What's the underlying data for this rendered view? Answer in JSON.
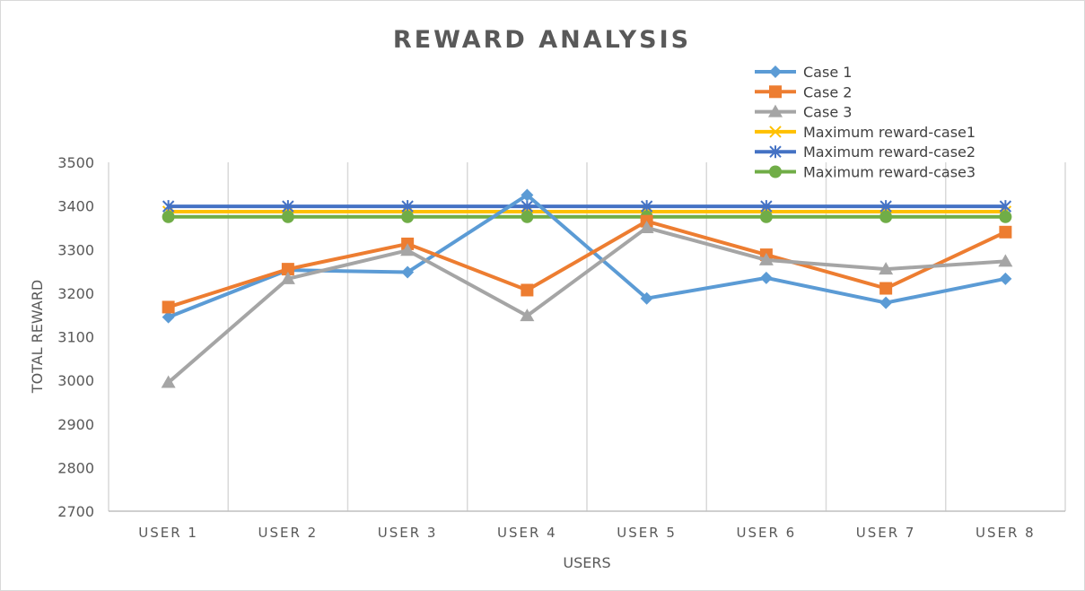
{
  "chart_data": {
    "type": "line",
    "title": "REWARD ANALYSIS",
    "xlabel": "USERS",
    "ylabel": "TOTAL REWARD",
    "categories": [
      "USER 1",
      "USER 2",
      "USER 3",
      "USER 4",
      "USER 5",
      "USER 6",
      "USER 7",
      "USER 8"
    ],
    "ylim": [
      2700,
      3500
    ],
    "yticks": [
      2700,
      2800,
      2900,
      3000,
      3100,
      3200,
      3300,
      3400,
      3500
    ],
    "grid": "vertical",
    "legend_position": "top-right",
    "series": [
      {
        "name": "Case 1",
        "color": "#5b9bd5",
        "marker": "diamond",
        "values": [
          3145,
          3253,
          3248,
          3425,
          3188,
          3235,
          3178,
          3233
        ]
      },
      {
        "name": "Case 2",
        "color": "#ed7d31",
        "marker": "square",
        "values": [
          3168,
          3255,
          3313,
          3207,
          3365,
          3288,
          3211,
          3340
        ]
      },
      {
        "name": "Case 3",
        "color": "#a5a5a5",
        "marker": "triangle",
        "values": [
          2995,
          3233,
          3298,
          3148,
          3350,
          3276,
          3255,
          3273
        ]
      },
      {
        "name": "Maximum reward-case1",
        "color": "#ffc000",
        "marker": "x",
        "values": [
          3387,
          3387,
          3387,
          3387,
          3387,
          3387,
          3387,
          3387
        ]
      },
      {
        "name": "Maximum reward-case2",
        "color": "#4472c4",
        "marker": "star",
        "values": [
          3399,
          3399,
          3399,
          3399,
          3399,
          3399,
          3399,
          3399
        ]
      },
      {
        "name": "Maximum reward-case3",
        "color": "#70ad47",
        "marker": "circle",
        "values": [
          3375,
          3375,
          3375,
          3375,
          3375,
          3375,
          3375,
          3375
        ]
      }
    ]
  }
}
